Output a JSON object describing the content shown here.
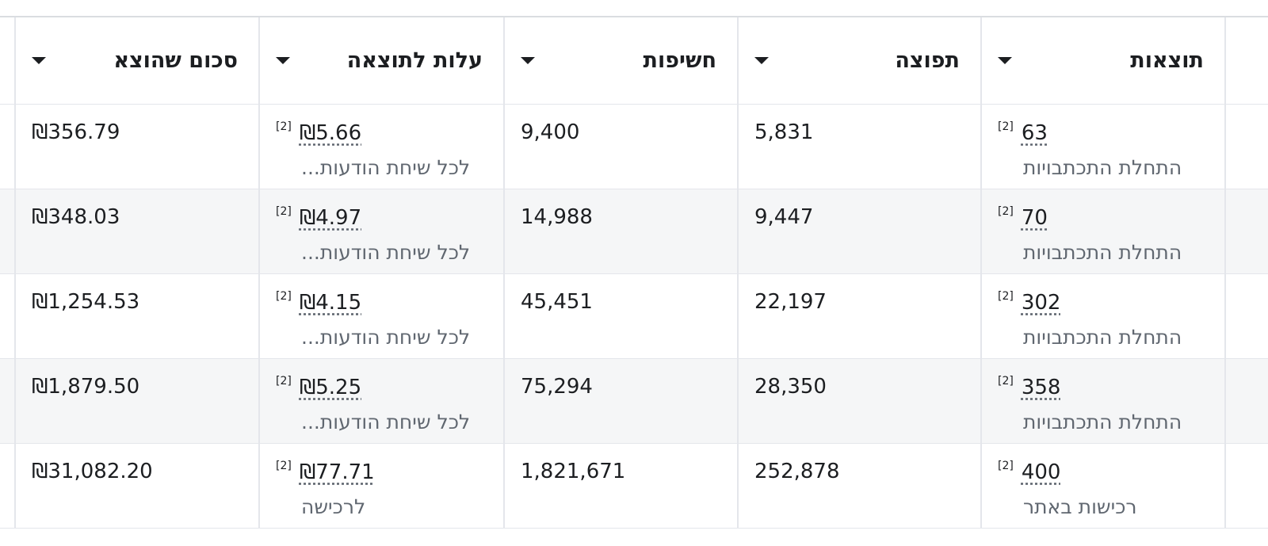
{
  "table": {
    "headers": [
      "תוצאות",
      "תפוצה",
      "חשיפות",
      "עלות לתוצאה",
      "סכום שהוצא"
    ],
    "rows": [
      {
        "cells": [
          {
            "value": "63",
            "note": "[2]",
            "label": "התחלת התכתבויות"
          },
          "5,831",
          "9,400",
          {
            "value": "₪5.66",
            "note": "[2]",
            "label": "לכל שיחת הודעות..."
          },
          "₪356.79"
        ]
      },
      {
        "cells": [
          {
            "value": "70",
            "note": "[2]",
            "label": "התחלת התכתבויות"
          },
          "9,447",
          "14,988",
          {
            "value": "₪4.97",
            "note": "[2]",
            "label": "לכל שיחת הודעות..."
          },
          "₪348.03"
        ]
      },
      {
        "cells": [
          {
            "value": "302",
            "note": "[2]",
            "label": "התחלת התכתבויות"
          },
          "22,197",
          "45,451",
          {
            "value": "₪4.15",
            "note": "[2]",
            "label": "לכל שיחת הודעות..."
          },
          "₪1,254.53"
        ]
      },
      {
        "cells": [
          {
            "value": "358",
            "note": "[2]",
            "label": "התחלת התכתבויות"
          },
          "28,350",
          "75,294",
          {
            "value": "₪5.25",
            "note": "[2]",
            "label": "לכל שיחת הודעות..."
          },
          "₪1,879.50"
        ]
      },
      {
        "cells": [
          {
            "value": "400",
            "note": "[2]",
            "label": "רכישות באתר"
          },
          "252,878",
          "1,821,671",
          {
            "value": "₪77.71",
            "note": "[2]",
            "label": "לרכישה"
          },
          "₪31,082.20"
        ]
      }
    ]
  }
}
